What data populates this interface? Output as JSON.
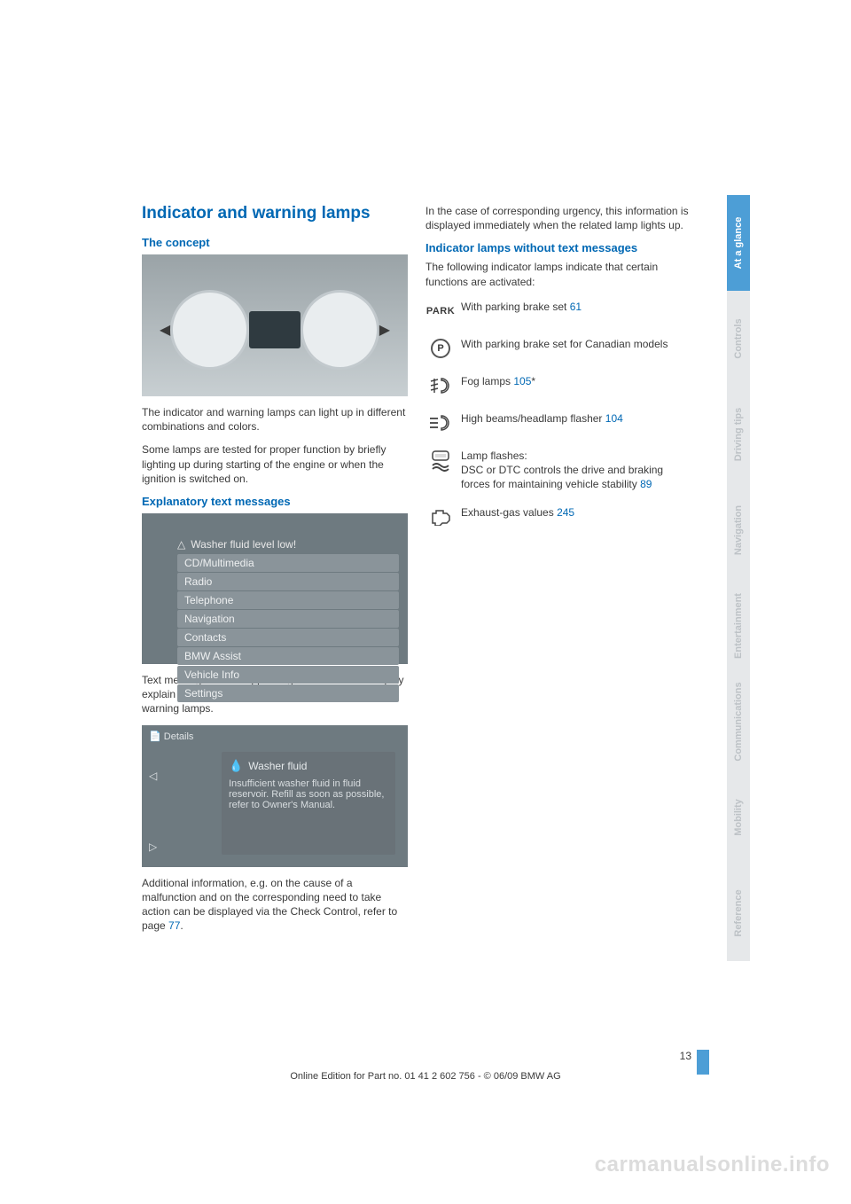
{
  "heading": "Indicator and warning lamps",
  "left": {
    "concept": {
      "title": "The concept",
      "p1": "The indicator and warning lamps can light up in different combinations and colors.",
      "p2": "Some lamps are tested for proper function by briefly lighting up during starting of the engine or when the ignition is switched on."
    },
    "explanatory": {
      "title": "Explanatory text messages",
      "menu_header": "Washer fluid level low!",
      "menu_items": [
        "CD/Multimedia",
        "Radio",
        "Telephone",
        "Navigation",
        "Contacts",
        "BMW Assist",
        "Vehicle Info",
        "Settings"
      ],
      "p1": "Text messages at the upper edge of the Control Display explain the meaning of the displayed indicator and warning lamps.",
      "details_tab": "Details",
      "details_title": "Washer fluid",
      "details_body": "Insufficient washer fluid in fluid reservoir. Refill as soon as possible, refer to Owner's Manual.",
      "p2_a": "Additional information, e.g. on the cause of a malfunction and on the corresponding need to take action can be displayed via the Check Control, refer to page ",
      "p2_ref": "77",
      "p2_b": "."
    }
  },
  "right": {
    "p1": "In the case of corresponding urgency, this information is displayed immediately when the related lamp lights up.",
    "subtitle": "Indicator lamps without text messages",
    "p2": "The following indicator lamps indicate that certain functions are activated:",
    "rows": [
      {
        "icon": "park",
        "text": "With parking brake set ",
        "ref": "61",
        "suffix": ""
      },
      {
        "icon": "p-ring",
        "text": "With parking brake set for Canadian models",
        "ref": "",
        "suffix": ""
      },
      {
        "icon": "fog",
        "text": "Fog lamps ",
        "ref": "105",
        "suffix": "*"
      },
      {
        "icon": "highbeam",
        "text": "High beams/headlamp flasher ",
        "ref": "104",
        "suffix": ""
      },
      {
        "icon": "dsc",
        "text": "Lamp flashes:\nDSC or DTC controls the drive and braking forces for maintaining vehicle stability ",
        "ref": "89",
        "suffix": ""
      },
      {
        "icon": "engine",
        "text": "Exhaust-gas values ",
        "ref": "245",
        "suffix": ""
      }
    ]
  },
  "tabs": [
    "At a glance",
    "Controls",
    "Driving tips",
    "Navigation",
    "Entertainment",
    "Communications",
    "Mobility",
    "Reference"
  ],
  "active_tab_index": 0,
  "colors": {
    "brand": "#0068b4",
    "tab_active": "#4d9ed6",
    "tab_inactive_bg": "#e6e8ea",
    "tab_inactive_text": "#bdc2c6",
    "body_text": "#3a3a3a",
    "watermark": "#dcdcdc"
  },
  "page_number": "13",
  "footer": "Online Edition for Part no. 01 41 2 602 756 - © 06/09 BMW AG",
  "watermark": "carmanualsonline.info"
}
